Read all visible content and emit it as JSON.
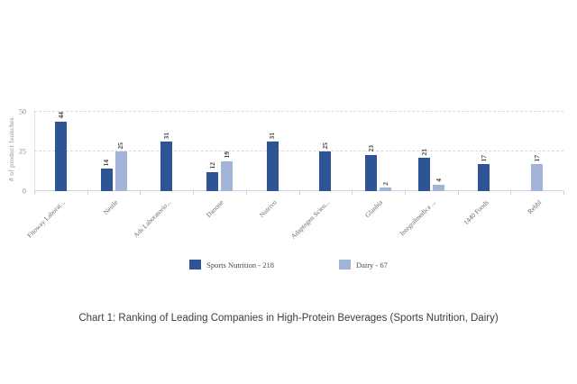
{
  "caption": "Chart 1: Ranking of Leading Companies in High-Protein Beverages (Sports Nutrition, Dairy)",
  "chart_data": {
    "type": "bar",
    "title": "",
    "ylabel": "# of product launches",
    "ylim": [
      0,
      50
    ],
    "yticks": [
      0,
      25,
      50
    ],
    "grid": "horizontal dashed at 25 and 50",
    "legend_position": "bottom",
    "categories": [
      "Fitoway Laborat...",
      "Nestle",
      "Ads Laboratorio...",
      "Danone",
      "Nutrivo",
      "Adaptogen Scien...",
      "Glanbia",
      "Integralmedica ...",
      "1440 Foods",
      "Rebbl"
    ],
    "series": [
      {
        "name": "Sports Nutrition - 218",
        "color": "#2e5496",
        "values": [
          44,
          14,
          31,
          12,
          31,
          25,
          23,
          21,
          17,
          null
        ]
      },
      {
        "name": "Dairy - 67",
        "color": "#a2b5d8",
        "values": [
          null,
          25,
          null,
          19,
          null,
          null,
          2,
          4,
          null,
          17
        ]
      }
    ]
  },
  "colors": {
    "bar_dark": "#2e5496",
    "bar_light": "#a2b5d8",
    "gridline": "#d9d9d9",
    "axis": "#c9d2df",
    "tick_text": "#8c8c8c",
    "category_text": "#6b6b6b",
    "value_text": "#3f3f3f"
  }
}
